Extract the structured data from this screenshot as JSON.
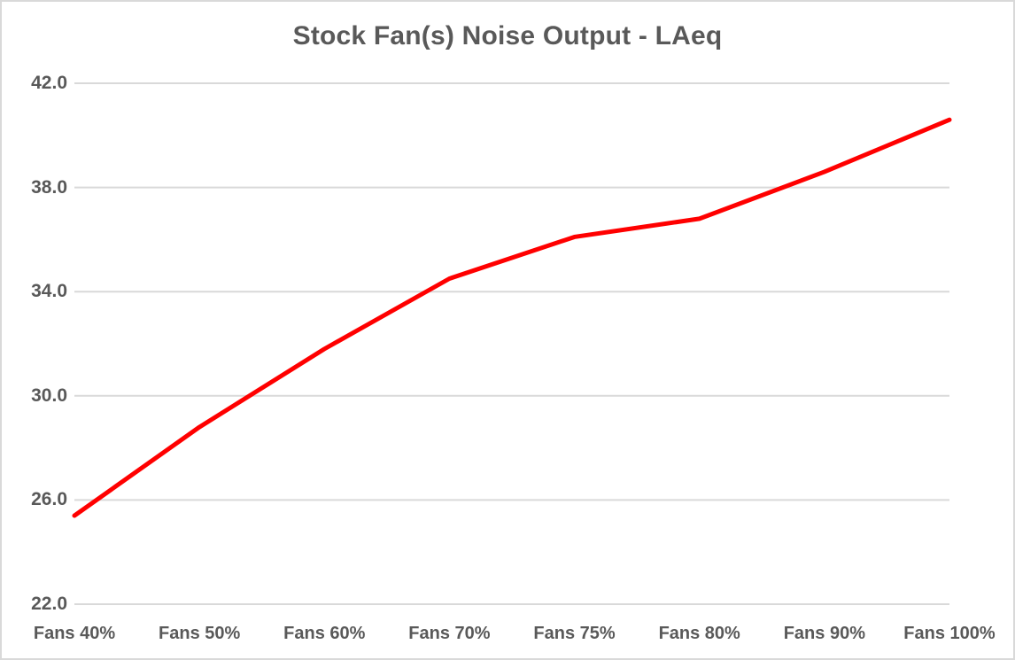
{
  "title": "Stock Fan(s) Noise Output - LAeq",
  "chart_data": {
    "type": "line",
    "title": "Stock Fan(s) Noise Output - LAeq",
    "categories": [
      "Fans 40%",
      "Fans 50%",
      "Fans 60%",
      "Fans 70%",
      "Fans 75%",
      "Fans 80%",
      "Fans 90%",
      "Fans 100%"
    ],
    "series": [
      {
        "name": "LAeq",
        "values": [
          25.4,
          28.8,
          31.8,
          34.5,
          36.1,
          36.8,
          38.6,
          40.6
        ],
        "color": "#FF0000",
        "stroke_width": 5
      }
    ],
    "xlabel": "",
    "ylabel": "",
    "ylim": [
      22.0,
      42.0
    ],
    "ytick_step": 4,
    "ytick_labels": [
      "42.0",
      "38.0",
      "34.0",
      "30.0",
      "26.0",
      "22.0"
    ],
    "grid": true,
    "legend_position": "none"
  },
  "colors": {
    "line": "#FF0000",
    "gridline": "#D9D9D9",
    "text": "#595959",
    "border": "#D9D9D9",
    "background": "#FFFFFF"
  }
}
